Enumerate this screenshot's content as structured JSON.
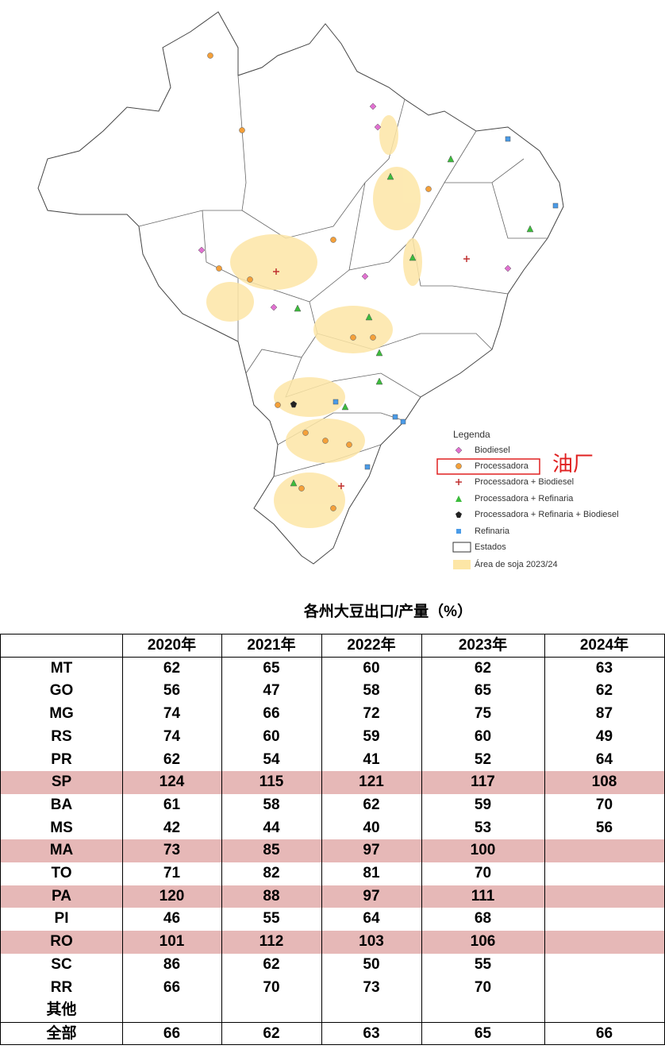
{
  "legend": {
    "title": "Legenda",
    "items": [
      "Biodiesel",
      "Processadora",
      "Processadora + Biodiesel",
      "Processadora + Refinaria",
      "Processadora + Refinaria + Biodiesel",
      "Refinaria",
      "Estados",
      "Área de soja 2023/24"
    ]
  },
  "annotation": "油厂",
  "table": {
    "title": "各州大豆出口/产量（%）",
    "columns": [
      "2020年",
      "2021年",
      "2022年",
      "2023年",
      "2024年"
    ],
    "rows": [
      {
        "state": "MT",
        "values": [
          62,
          65,
          60,
          62,
          63
        ],
        "highlight": false
      },
      {
        "state": "GO",
        "values": [
          56,
          47,
          58,
          65,
          62
        ],
        "highlight": false
      },
      {
        "state": "MG",
        "values": [
          74,
          66,
          72,
          75,
          87
        ],
        "highlight": false
      },
      {
        "state": "RS",
        "values": [
          74,
          60,
          59,
          60,
          49
        ],
        "highlight": false
      },
      {
        "state": "PR",
        "values": [
          62,
          54,
          41,
          52,
          64
        ],
        "highlight": false
      },
      {
        "state": "SP",
        "values": [
          124,
          115,
          121,
          117,
          108
        ],
        "highlight": true
      },
      {
        "state": "BA",
        "values": [
          61,
          58,
          62,
          59,
          70
        ],
        "highlight": false
      },
      {
        "state": "MS",
        "values": [
          42,
          44,
          40,
          53,
          56
        ],
        "highlight": false
      },
      {
        "state": "MA",
        "values": [
          73,
          85,
          97,
          100,
          null
        ],
        "highlight": true
      },
      {
        "state": "TO",
        "values": [
          71,
          82,
          81,
          70,
          null
        ],
        "highlight": false
      },
      {
        "state": "PA",
        "values": [
          120,
          88,
          97,
          111,
          null
        ],
        "highlight": true
      },
      {
        "state": "PI",
        "values": [
          46,
          55,
          64,
          68,
          null
        ],
        "highlight": false
      },
      {
        "state": "RO",
        "values": [
          101,
          112,
          103,
          106,
          null
        ],
        "highlight": true
      },
      {
        "state": "SC",
        "values": [
          86,
          62,
          50,
          55,
          null
        ],
        "highlight": false
      },
      {
        "state": "RR",
        "values": [
          66,
          70,
          73,
          70,
          null
        ],
        "highlight": false
      },
      {
        "state": "其他",
        "values": [
          null,
          null,
          null,
          null,
          null
        ],
        "highlight": false
      }
    ],
    "total": {
      "state": "全部",
      "values": [
        66,
        62,
        63,
        65,
        66
      ]
    }
  }
}
